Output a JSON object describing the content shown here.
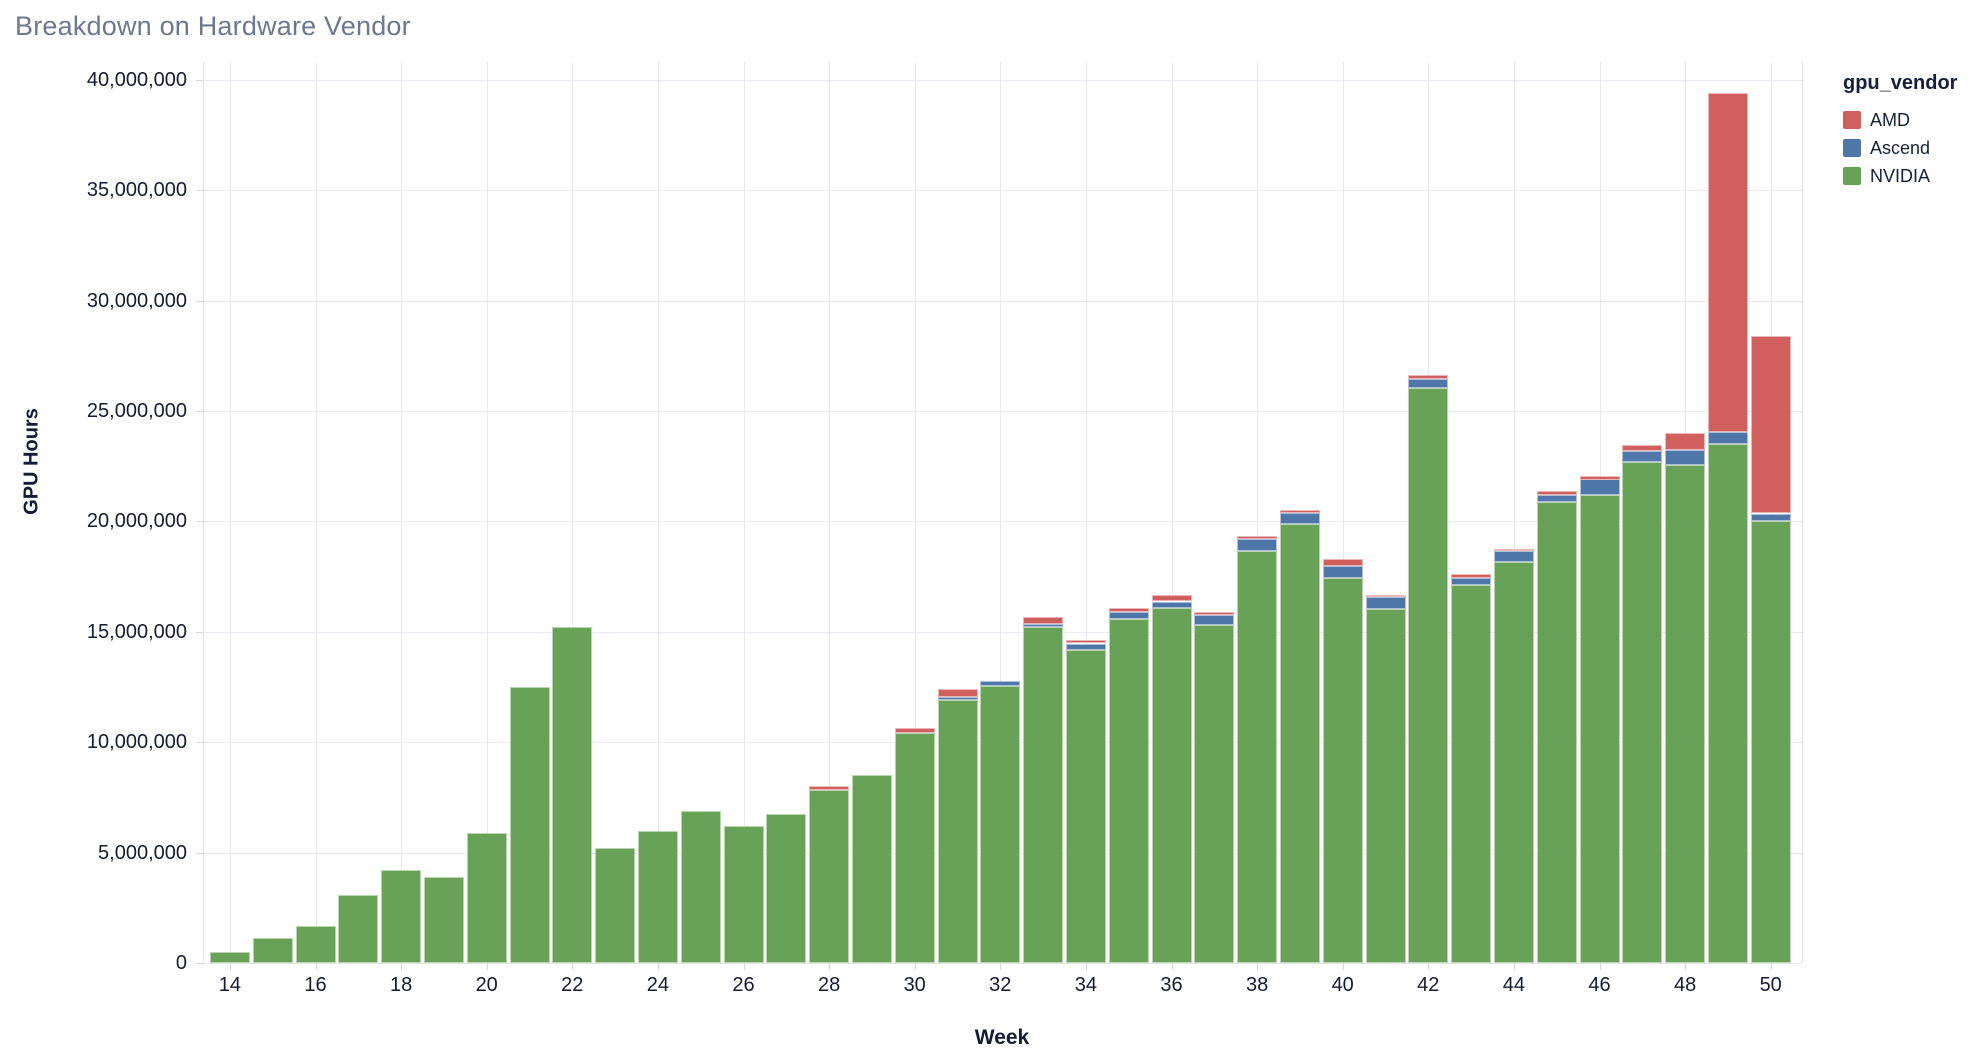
{
  "title": "Breakdown on Hardware Vendor",
  "legend": {
    "title": "gpu_vendor",
    "items": [
      {
        "label": "AMD",
        "color": "#d15f5e"
      },
      {
        "label": "Ascend",
        "color": "#4e76a8"
      },
      {
        "label": "NVIDIA",
        "color": "#68a257"
      }
    ]
  },
  "axes": {
    "y_tick_labels": [
      "0",
      "5,000,000",
      "10,000,000",
      "15,000,000",
      "20,000,000",
      "25,000,000",
      "30,000,000",
      "35,000,000",
      "40,000,000"
    ],
    "x_tick_labels": [
      "14",
      "16",
      "18",
      "20",
      "22",
      "24",
      "26",
      "28",
      "30",
      "32",
      "34",
      "36",
      "38",
      "40",
      "42",
      "44",
      "46",
      "48",
      "50"
    ]
  },
  "chart_data": {
    "type": "bar",
    "stacked": true,
    "title": "Breakdown on Hardware Vendor",
    "xlabel": "Week",
    "ylabel": "GPU Hours",
    "x": [
      14,
      15,
      16,
      17,
      18,
      19,
      20,
      21,
      22,
      23,
      24,
      25,
      26,
      27,
      28,
      29,
      30,
      31,
      32,
      33,
      34,
      35,
      36,
      37,
      38,
      39,
      40,
      41,
      42,
      43,
      44,
      45,
      46,
      47,
      48,
      49,
      50
    ],
    "xticks": [
      14,
      16,
      18,
      20,
      22,
      24,
      26,
      28,
      30,
      32,
      34,
      36,
      38,
      40,
      42,
      44,
      46,
      48,
      50
    ],
    "ylim": [
      0,
      40000000
    ],
    "ytick_interval": 5000000,
    "grid": true,
    "legend_position": "right",
    "stack_order": "bottom-to-top",
    "series": [
      {
        "name": "NVIDIA",
        "color": "#68a257",
        "values": [
          500000,
          1150000,
          1700000,
          3100000,
          4200000,
          3900000,
          5900000,
          12500000,
          15200000,
          5200000,
          6000000,
          6900000,
          6200000,
          6750000,
          7850000,
          8500000,
          10400000,
          11900000,
          12550000,
          15200000,
          14200000,
          15600000,
          16100000,
          15300000,
          18650000,
          19900000,
          17450000,
          16050000,
          26050000,
          17100000,
          18150000,
          20900000,
          21200000,
          22700000,
          22550000,
          23500000,
          20000000
        ]
      },
      {
        "name": "Ascend",
        "color": "#4e76a8",
        "values": [
          0,
          0,
          0,
          0,
          0,
          0,
          0,
          0,
          0,
          0,
          0,
          0,
          0,
          0,
          0,
          0,
          0,
          140000,
          230000,
          140000,
          270000,
          320000,
          270000,
          450000,
          550000,
          500000,
          550000,
          540000,
          400000,
          360000,
          500000,
          320000,
          700000,
          500000,
          680000,
          550000,
          360000
        ]
      },
      {
        "name": "AMD",
        "color": "#d15f5e",
        "values": [
          0,
          0,
          0,
          0,
          0,
          0,
          0,
          0,
          0,
          0,
          0,
          0,
          0,
          0,
          180000,
          0,
          230000,
          360000,
          0,
          320000,
          140000,
          180000,
          300000,
          140000,
          150000,
          100000,
          320000,
          100000,
          180000,
          180000,
          100000,
          180000,
          180000,
          250000,
          770000,
          15350000,
          8050000
        ]
      }
    ]
  }
}
